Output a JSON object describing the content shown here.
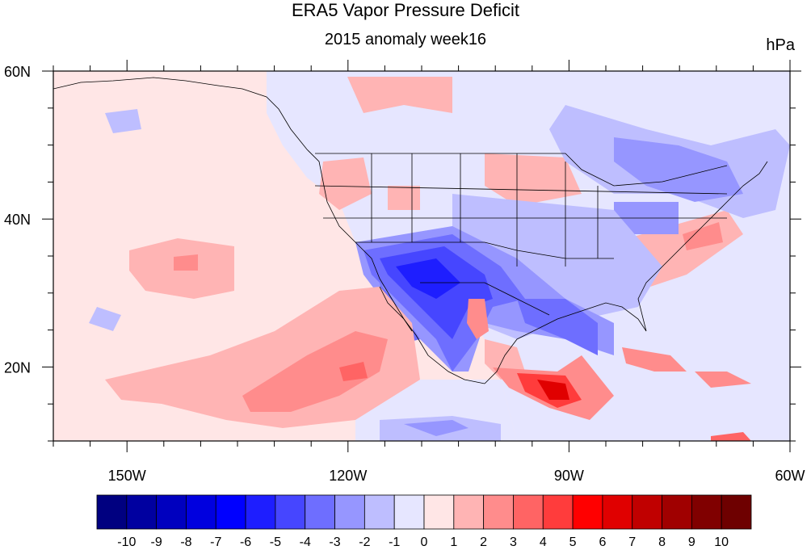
{
  "title": "ERA5 Vapor Pressure Deficit",
  "subtitle": "2015 anomaly week16",
  "units": "hPa",
  "map": {
    "projection": "cylindrical-equidistant",
    "lon_range": [
      -160,
      -60
    ],
    "lat_range": [
      10,
      60
    ],
    "lon_ticks": [
      {
        "value": -150,
        "label": "150W"
      },
      {
        "value": -120,
        "label": "120W"
      },
      {
        "value": -90,
        "label": "90W"
      },
      {
        "value": -60,
        "label": "60W"
      }
    ],
    "lat_ticks": [
      {
        "value": 60,
        "label": "60N"
      },
      {
        "value": 40,
        "label": "40N"
      },
      {
        "value": 20,
        "label": "20N"
      }
    ]
  },
  "colorbar": {
    "labels": [
      "-10",
      "-9",
      "-8",
      "-7",
      "-6",
      "-5",
      "-4",
      "-3",
      "-2",
      "-1",
      "0",
      "1",
      "2",
      "3",
      "4",
      "5",
      "6",
      "7",
      "8",
      "9",
      "10"
    ],
    "colors": [
      "#000080",
      "#0000a0",
      "#0000bf",
      "#0000df",
      "#0000ff",
      "#1e1eff",
      "#4646ff",
      "#6e6eff",
      "#9696ff",
      "#bebeff",
      "#e6e6ff",
      "#ffe6e6",
      "#ffb4b4",
      "#ff8c8c",
      "#ff6464",
      "#ff3c3c",
      "#ff0000",
      "#e00000",
      "#c00000",
      "#a00000",
      "#800000",
      "#6e0000"
    ]
  }
}
